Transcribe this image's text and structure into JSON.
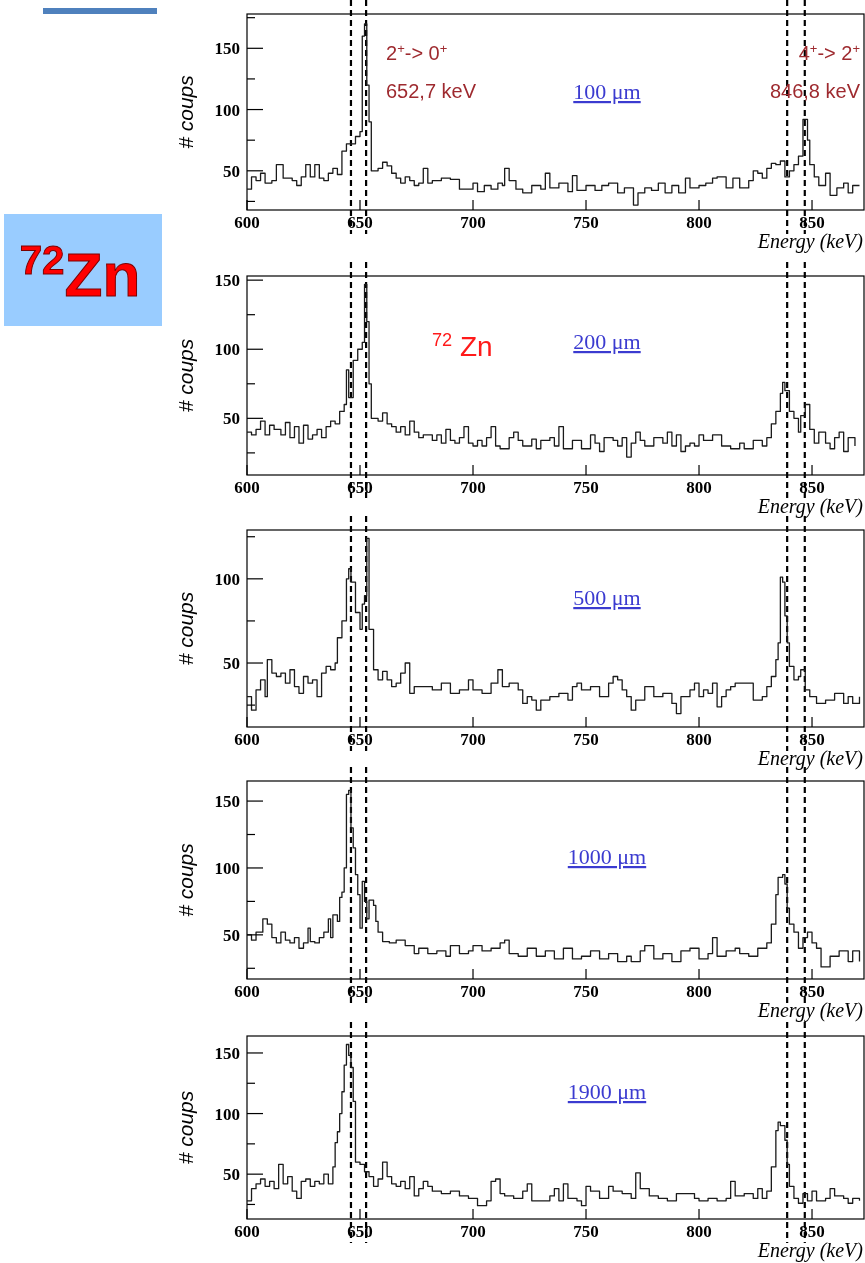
{
  "chart_data": [
    {
      "type": "step",
      "title": "100 μm",
      "xlabel": "Energy (keV)",
      "ylabel": "# coups",
      "xlim": [
        600,
        873
      ],
      "xticks": [
        600,
        650,
        700,
        750,
        800,
        850
      ],
      "ylim": [
        18,
        178
      ],
      "yticks": [
        {
          "value": 25,
          "label": null
        },
        50,
        {
          "value": 75,
          "label": null
        },
        100,
        {
          "value": 125,
          "label": null
        },
        150,
        {
          "value": 175,
          "label": null
        }
      ],
      "x": [
        600,
        602,
        604,
        606,
        608,
        611,
        613,
        616,
        620,
        622,
        624,
        626,
        628,
        630,
        632,
        634,
        636,
        638,
        640,
        642,
        644,
        646,
        648,
        650,
        651,
        652,
        653,
        654,
        655,
        658,
        660,
        662,
        664,
        666,
        668,
        670,
        672,
        674,
        676,
        678,
        680,
        682,
        686,
        690,
        694,
        698,
        700,
        702,
        705,
        708,
        711,
        713,
        714,
        716,
        719,
        722,
        726,
        730,
        732,
        734,
        738,
        742,
        744,
        746,
        750,
        754,
        757,
        760,
        764,
        767,
        771,
        773,
        776,
        779,
        782,
        785,
        788,
        791,
        794,
        796,
        800,
        803,
        806,
        808,
        812,
        815,
        818,
        822,
        824,
        826,
        828,
        830,
        832,
        834,
        836,
        838,
        840,
        842,
        844,
        846,
        848,
        849,
        851,
        853,
        856,
        858,
        861,
        864,
        866,
        868,
        871
      ],
      "series": [
        {
          "color": "#1a1a1a",
          "values": [
            35,
            45,
            42,
            48,
            40,
            42,
            55,
            44,
            42,
            38,
            45,
            55,
            45,
            55,
            44,
            42,
            48,
            52,
            47,
            66,
            72,
            72,
            78,
            82,
            160,
            170,
            120,
            90,
            50,
            52,
            57,
            54,
            48,
            44,
            40,
            45,
            42,
            38,
            40,
            52,
            40,
            42,
            44,
            43,
            35,
            35,
            40,
            33,
            38,
            35,
            40,
            38,
            52,
            42,
            35,
            32,
            38,
            35,
            48,
            36,
            40,
            33,
            46,
            34,
            38,
            34,
            38,
            40,
            32,
            36,
            22,
            32,
            36,
            34,
            40,
            32,
            38,
            32,
            44,
            36,
            38,
            40,
            44,
            45,
            36,
            44,
            36,
            42,
            50,
            48,
            44,
            52,
            56,
            55,
            58,
            45,
            50,
            55,
            62,
            92,
            75,
            55,
            45,
            38,
            48,
            30,
            36,
            40,
            32,
            38,
            38
          ]
        }
      ],
      "ref_lines": [
        {
          "axis": "x",
          "value": 646,
          "line_style": "dashed",
          "color": "#000000"
        },
        {
          "axis": "x",
          "value": 652.7,
          "line_style": "dashed",
          "color": "#000000"
        },
        {
          "axis": "x",
          "value": 839,
          "line_style": "dashed",
          "color": "#000000"
        },
        {
          "axis": "x",
          "value": 846.8,
          "line_style": "dashed",
          "color": "#000000"
        }
      ],
      "annotations": [
        "2$^{+}$-> 0$^{+}$",
        "652,7 keV",
        "4$^{+}$-> 2$^{+}$",
        "846,8 keV",
        "$^{72}$Zn"
      ]
    },
    {
      "type": "step",
      "title": "200 μm",
      "xlabel": "Energy (keV)",
      "ylabel": "# coups",
      "xlim": [
        600,
        873
      ],
      "xticks": [
        600,
        650,
        700,
        750,
        800,
        850
      ],
      "ylim": [
        9,
        153
      ],
      "yticks": [
        {
          "value": 25,
          "label": null
        },
        50,
        {
          "value": 75,
          "label": null
        },
        100,
        {
          "value": 125,
          "label": null
        },
        150
      ],
      "x": [
        600,
        602,
        604,
        606,
        608,
        610,
        612,
        615,
        617,
        619,
        621,
        623,
        625,
        627,
        629,
        631,
        633,
        635,
        637,
        639,
        641,
        643,
        644,
        645,
        647,
        649,
        651,
        652,
        653,
        654,
        655,
        658,
        660,
        662,
        664,
        666,
        668,
        670,
        672,
        674,
        676,
        678,
        682,
        684,
        686,
        688,
        690,
        692,
        694,
        696,
        698,
        700,
        702,
        704,
        706,
        708,
        710,
        712,
        716,
        718,
        720,
        722,
        726,
        728,
        730,
        734,
        736,
        738,
        740,
        744,
        748,
        752,
        754,
        756,
        758,
        762,
        764,
        766,
        768,
        770,
        772,
        774,
        776,
        780,
        784,
        786,
        788,
        790,
        792,
        794,
        796,
        798,
        800,
        802,
        806,
        810,
        814,
        818,
        820,
        824,
        828,
        830,
        832,
        834,
        836,
        837,
        838,
        840,
        842,
        844,
        845,
        847,
        849,
        851,
        853,
        856,
        858,
        860,
        862,
        864,
        866,
        869
      ],
      "series": [
        {
          "color": "#1a1a1a",
          "values": [
            40,
            38,
            42,
            48,
            38,
            45,
            42,
            38,
            47,
            36,
            44,
            32,
            45,
            35,
            38,
            42,
            36,
            44,
            48,
            46,
            55,
            60,
            85,
            65,
            92,
            100,
            105,
            147,
            120,
            75,
            50,
            48,
            54,
            46,
            44,
            40,
            44,
            38,
            48,
            40,
            36,
            38,
            34,
            38,
            32,
            42,
            34,
            32,
            36,
            44,
            32,
            30,
            34,
            30,
            36,
            44,
            30,
            28,
            36,
            40,
            34,
            30,
            35,
            28,
            34,
            36,
            30,
            44,
            28,
            34,
            28,
            38,
            32,
            26,
            36,
            34,
            30,
            36,
            22,
            32,
            40,
            34,
            30,
            36,
            32,
            40,
            30,
            38,
            26,
            30,
            32,
            30,
            38,
            34,
            38,
            30,
            28,
            32,
            28,
            34,
            30,
            36,
            46,
            55,
            68,
            76,
            70,
            55,
            50,
            40,
            52,
            60,
            42,
            32,
            40,
            32,
            28,
            36,
            40,
            26,
            36,
            30
          ]
        }
      ],
      "ref_lines": [
        {
          "axis": "x",
          "value": 646,
          "line_style": "dashed",
          "color": "#000000"
        },
        {
          "axis": "x",
          "value": 652.7,
          "line_style": "dashed",
          "color": "#000000"
        },
        {
          "axis": "x",
          "value": 839,
          "line_style": "dashed",
          "color": "#000000"
        },
        {
          "axis": "x",
          "value": 846.8,
          "line_style": "dashed",
          "color": "#000000"
        }
      ],
      "annotations": [
        "$^{72}$ Zn"
      ]
    },
    {
      "type": "step",
      "title": "500 μm",
      "xlabel": "Energy (keV)",
      "ylabel": "# coups",
      "xlim": [
        600,
        873
      ],
      "xticks": [
        600,
        650,
        700,
        750,
        800,
        850
      ],
      "ylim": [
        12,
        129
      ],
      "yticks": [
        {
          "value": 25,
          "label": null
        },
        50,
        {
          "value": 75,
          "label": null
        },
        100,
        {
          "value": 125,
          "label": null
        }
      ],
      "x": [
        600,
        602,
        604,
        606,
        608,
        609,
        611,
        613,
        615,
        617,
        619,
        621,
        623,
        625,
        627,
        629,
        631,
        633,
        635,
        637,
        639,
        640,
        642,
        644,
        645,
        646,
        648,
        650,
        651,
        652,
        653,
        654,
        656,
        658,
        660,
        662,
        664,
        666,
        668,
        670,
        672,
        674,
        678,
        682,
        686,
        690,
        694,
        698,
        700,
        704,
        708,
        711,
        713,
        716,
        720,
        722,
        724,
        726,
        728,
        730,
        734,
        738,
        742,
        744,
        746,
        748,
        752,
        756,
        760,
        762,
        764,
        766,
        768,
        770,
        772,
        776,
        780,
        784,
        788,
        790,
        792,
        796,
        798,
        800,
        802,
        804,
        806,
        808,
        810,
        812,
        814,
        816,
        820,
        824,
        828,
        830,
        832,
        834,
        835,
        836,
        837,
        838,
        839,
        840,
        842,
        844,
        845,
        847,
        849,
        852,
        856,
        860,
        864,
        866,
        868,
        871
      ],
      "series": [
        {
          "color": "#1a1a1a",
          "values": [
            30,
            22,
            34,
            40,
            30,
            52,
            44,
            42,
            44,
            38,
            46,
            36,
            32,
            42,
            38,
            40,
            30,
            44,
            48,
            46,
            50,
            65,
            75,
            100,
            106,
            98,
            80,
            70,
            85,
            90,
            124,
            70,
            46,
            40,
            45,
            40,
            36,
            38,
            44,
            50,
            32,
            36,
            36,
            34,
            38,
            32,
            34,
            40,
            34,
            32,
            38,
            46,
            36,
            38,
            34,
            26,
            30,
            28,
            22,
            28,
            30,
            32,
            28,
            36,
            38,
            34,
            36,
            30,
            38,
            42,
            40,
            34,
            30,
            22,
            28,
            36,
            30,
            32,
            26,
            20,
            30,
            34,
            38,
            30,
            34,
            32,
            38,
            24,
            30,
            34,
            36,
            38,
            38,
            28,
            30,
            36,
            42,
            52,
            62,
            101,
            98,
            78,
            62,
            48,
            40,
            42,
            46,
            34,
            30,
            26,
            28,
            32,
            26,
            30,
            26,
            30
          ]
        }
      ],
      "ref_lines": [
        {
          "axis": "x",
          "value": 646,
          "line_style": "dashed",
          "color": "#000000"
        },
        {
          "axis": "x",
          "value": 652.7,
          "line_style": "dashed",
          "color": "#000000"
        },
        {
          "axis": "x",
          "value": 839,
          "line_style": "dashed",
          "color": "#000000"
        },
        {
          "axis": "x",
          "value": 846.8,
          "line_style": "dashed",
          "color": "#000000"
        }
      ]
    },
    {
      "type": "step",
      "title": "1000 μm",
      "xlabel": "Energy (keV)",
      "ylabel": "# coups",
      "xlim": [
        600,
        873
      ],
      "xticks": [
        600,
        650,
        700,
        750,
        800,
        850
      ],
      "ylim": [
        17,
        165
      ],
      "yticks": [
        {
          "value": 25,
          "label": null
        },
        50,
        {
          "value": 75,
          "label": null
        },
        100,
        {
          "value": 125,
          "label": null
        },
        150
      ],
      "x": [
        600,
        602,
        604,
        607,
        609,
        611,
        613,
        615,
        617,
        619,
        621,
        623,
        625,
        627,
        628,
        630,
        632,
        634,
        636,
        637,
        638,
        640,
        641,
        642,
        643,
        644,
        645,
        646,
        647,
        648,
        649,
        650,
        651,
        652,
        653,
        654,
        656,
        657,
        658,
        660,
        663,
        666,
        670,
        674,
        676,
        680,
        684,
        688,
        690,
        694,
        698,
        700,
        704,
        708,
        712,
        714,
        716,
        720,
        724,
        728,
        732,
        736,
        740,
        744,
        748,
        752,
        756,
        760,
        764,
        768,
        770,
        774,
        776,
        780,
        784,
        788,
        792,
        796,
        800,
        804,
        806,
        808,
        812,
        816,
        818,
        822,
        826,
        830,
        832,
        834,
        835,
        837,
        838,
        839,
        840,
        842,
        844,
        846,
        848,
        850,
        852,
        854,
        858,
        862,
        866,
        868,
        871
      ],
      "series": [
        {
          "color": "#1a1a1a",
          "values": [
            50,
            46,
            52,
            62,
            58,
            48,
            44,
            52,
            46,
            44,
            48,
            40,
            44,
            55,
            45,
            44,
            48,
            52,
            62,
            48,
            65,
            60,
            78,
            82,
            100,
            155,
            158,
            130,
            115,
            95,
            80,
            55,
            90,
            75,
            62,
            76,
            72,
            60,
            52,
            45,
            44,
            46,
            42,
            36,
            40,
            36,
            38,
            34,
            42,
            36,
            38,
            42,
            38,
            40,
            44,
            46,
            36,
            34,
            40,
            34,
            38,
            32,
            40,
            32,
            34,
            38,
            32,
            36,
            30,
            34,
            30,
            38,
            42,
            32,
            36,
            30,
            38,
            40,
            32,
            36,
            48,
            34,
            38,
            40,
            36,
            34,
            40,
            44,
            58,
            80,
            93,
            95,
            88,
            70,
            58,
            52,
            40,
            48,
            52,
            44,
            40,
            26,
            34,
            38,
            30,
            38,
            30
          ]
        }
      ],
      "ref_lines": [
        {
          "axis": "x",
          "value": 646,
          "line_style": "dashed",
          "color": "#000000"
        },
        {
          "axis": "x",
          "value": 652.7,
          "line_style": "dashed",
          "color": "#000000"
        },
        {
          "axis": "x",
          "value": 839,
          "line_style": "dashed",
          "color": "#000000"
        },
        {
          "axis": "x",
          "value": 846.8,
          "line_style": "dashed",
          "color": "#000000"
        }
      ]
    },
    {
      "type": "step",
      "title": "1900 μm",
      "xlabel": "Energy (keV)",
      "ylabel": "# coups",
      "xlim": [
        600,
        873
      ],
      "xticks": [
        600,
        650,
        700,
        750,
        800,
        850
      ],
      "ylim": [
        13,
        164
      ],
      "yticks": [
        {
          "value": 25,
          "label": null
        },
        50,
        {
          "value": 75,
          "label": null
        },
        100,
        {
          "value": 125,
          "label": null
        },
        150
      ],
      "x": [
        600,
        602,
        604,
        606,
        608,
        610,
        612,
        614,
        616,
        618,
        620,
        622,
        624,
        626,
        628,
        630,
        632,
        634,
        636,
        638,
        639,
        640,
        641,
        642,
        643,
        644,
        645,
        646,
        647,
        648,
        650,
        652,
        654,
        656,
        658,
        660,
        662,
        664,
        666,
        668,
        670,
        672,
        674,
        676,
        678,
        680,
        682,
        686,
        690,
        694,
        698,
        702,
        706,
        708,
        710,
        712,
        714,
        718,
        722,
        724,
        726,
        730,
        734,
        736,
        738,
        740,
        742,
        746,
        748,
        750,
        752,
        756,
        760,
        762,
        766,
        770,
        772,
        774,
        778,
        782,
        786,
        790,
        794,
        798,
        800,
        804,
        808,
        812,
        814,
        816,
        820,
        824,
        826,
        828,
        830,
        832,
        834,
        835,
        836,
        838,
        839,
        840,
        842,
        844,
        846,
        848,
        850,
        852,
        856,
        858,
        860,
        864,
        866,
        868,
        871
      ],
      "series": [
        {
          "color": "#1a1a1a",
          "values": [
            28,
            38,
            42,
            46,
            40,
            44,
            38,
            58,
            42,
            48,
            36,
            30,
            44,
            46,
            40,
            44,
            42,
            50,
            42,
            56,
            76,
            85,
            100,
            118,
            140,
            157,
            148,
            138,
            110,
            60,
            58,
            52,
            48,
            40,
            46,
            60,
            48,
            42,
            40,
            44,
            38,
            48,
            32,
            38,
            44,
            40,
            36,
            34,
            36,
            32,
            30,
            24,
            28,
            44,
            46,
            34,
            32,
            30,
            36,
            42,
            28,
            28,
            32,
            38,
            28,
            42,
            30,
            28,
            24,
            40,
            36,
            30,
            40,
            36,
            34,
            30,
            51,
            38,
            32,
            30,
            28,
            34,
            34,
            30,
            28,
            30,
            28,
            30,
            44,
            32,
            34,
            30,
            38,
            30,
            36,
            56,
            86,
            93,
            90,
            78,
            58,
            40,
            30,
            26,
            34,
            28,
            36,
            28,
            30,
            38,
            32,
            30,
            26,
            30,
            28
          ]
        }
      ],
      "ref_lines": [
        {
          "axis": "x",
          "value": 646,
          "line_style": "dashed",
          "color": "#000000"
        },
        {
          "axis": "x",
          "value": 652.7,
          "line_style": "dashed",
          "color": "#000000"
        },
        {
          "axis": "x",
          "value": 839,
          "line_style": "dashed",
          "color": "#000000"
        },
        {
          "axis": "x",
          "value": 846.8,
          "line_style": "dashed",
          "color": "#000000"
        }
      ]
    }
  ]
}
